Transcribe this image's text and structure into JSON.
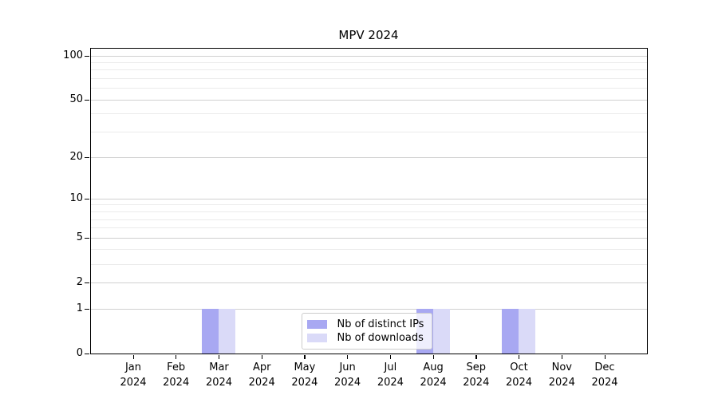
{
  "chart_data": {
    "type": "bar",
    "title": "MPV 2024",
    "categories": [
      "Jan 2024",
      "Feb 2024",
      "Mar 2024",
      "Apr 2024",
      "May 2024",
      "Jun 2024",
      "Jul 2024",
      "Aug 2024",
      "Sep 2024",
      "Oct 2024",
      "Nov 2024",
      "Dec 2024"
    ],
    "series": [
      {
        "name": "Nb of distinct IPs",
        "color": "#a8a8f2",
        "values": [
          0,
          0,
          1,
          0,
          0,
          0,
          0,
          1,
          0,
          1,
          0,
          0
        ]
      },
      {
        "name": "Nb of downloads",
        "color": "#dadaf8",
        "values": [
          0,
          0,
          1,
          0,
          0,
          0,
          0,
          1,
          0,
          1,
          0,
          0
        ]
      }
    ],
    "yscale": "log1p",
    "ylim": [
      0,
      112
    ],
    "y_major_ticks": [
      0,
      1,
      2,
      5,
      10,
      20,
      50,
      100
    ],
    "y_minor_ticks": [
      3,
      4,
      6,
      7,
      8,
      9,
      30,
      40,
      60,
      70,
      80,
      90
    ],
    "grid": "horizontal-on",
    "legend_position": "lower-center-inside"
  },
  "colors": {
    "axis": "#000000",
    "grid_major": "#d0d0d0",
    "grid_minor": "#ebebeb",
    "legend_border": "#cccccc",
    "text": "#000000",
    "background": "#ffffff"
  }
}
